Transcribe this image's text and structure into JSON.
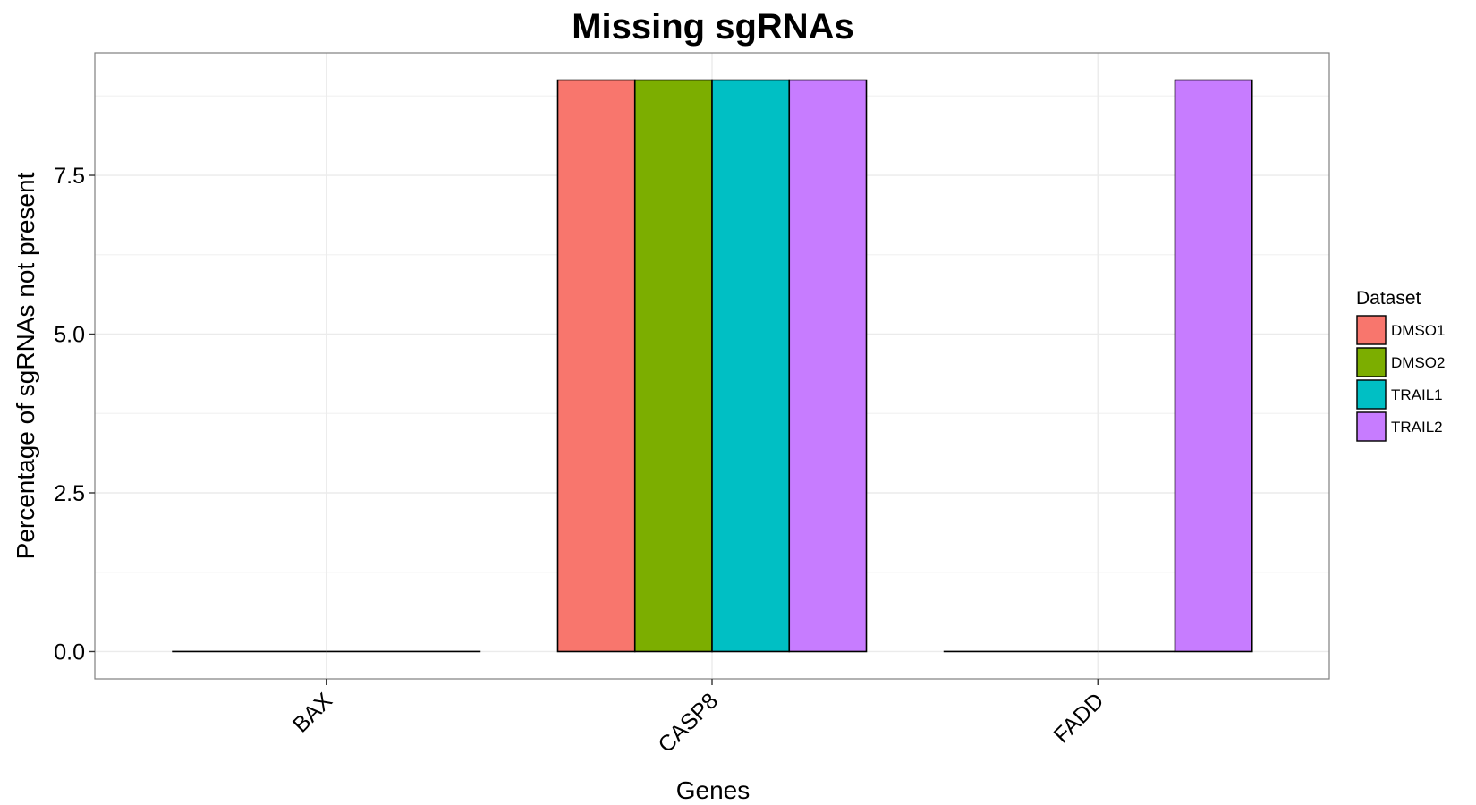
{
  "chart_data": {
    "type": "bar",
    "title": "Missing sgRNAs",
    "xlabel": "Genes",
    "ylabel": "Percentage of sgRNAs not present",
    "categories": [
      "BAX",
      "CASP8",
      "FADD"
    ],
    "series": [
      {
        "name": "DMSO1",
        "color": "#F8766D",
        "values": [
          0,
          9,
          0
        ]
      },
      {
        "name": "DMSO2",
        "color": "#7CAE00",
        "values": [
          0,
          9,
          0
        ]
      },
      {
        "name": "TRAIL1",
        "color": "#00BFC4",
        "values": [
          0,
          9,
          0
        ]
      },
      {
        "name": "TRAIL2",
        "color": "#C77CFF",
        "values": [
          0,
          9,
          9
        ]
      }
    ],
    "ylim": [
      -0.43,
      9.43
    ],
    "yticks": [
      0.0,
      2.5,
      5.0,
      7.5
    ],
    "ytick_labels": [
      "0.0",
      "2.5",
      "5.0",
      "7.5"
    ],
    "grid": true,
    "legend": {
      "title": "Dataset",
      "position": "right"
    }
  }
}
